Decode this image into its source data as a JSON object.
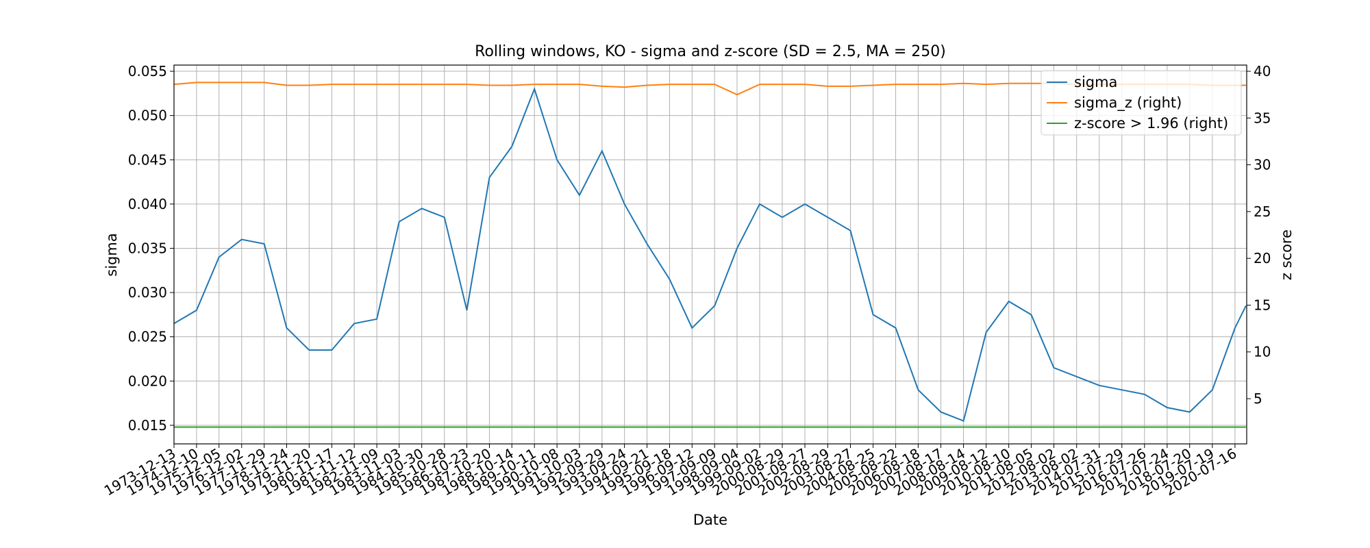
{
  "chart_data": {
    "type": "line",
    "title": "Rolling windows, KO - sigma and z-score (SD = 2.5, MA = 250)",
    "x_label": "Date",
    "y_label": "sigma",
    "y2_label": "z score",
    "x": [
      "1973-12-13",
      "1974-12-10",
      "1975-12-05",
      "1976-12-02",
      "1977-11-29",
      "1978-11-24",
      "1979-11-20",
      "1980-11-17",
      "1981-11-12",
      "1982-11-09",
      "1983-11-03",
      "1984-10-30",
      "1985-10-28",
      "1986-10-23",
      "1987-10-20",
      "1988-10-14",
      "1989-10-11",
      "1990-10-08",
      "1991-10-03",
      "1992-09-29",
      "1993-09-24",
      "1994-09-21",
      "1995-09-18",
      "1996-09-12",
      "1997-09-09",
      "1998-09-04",
      "1999-09-02",
      "2000-08-29",
      "2001-08-27",
      "2002-08-29",
      "2003-08-27",
      "2004-08-25",
      "2005-08-22",
      "2006-08-18",
      "2007-08-17",
      "2008-08-14",
      "2009-08-12",
      "2010-08-10",
      "2011-08-05",
      "2012-08-02",
      "2013-08-02",
      "2014-07-31",
      "2015-07-29",
      "2016-07-26",
      "2017-07-24",
      "2018-07-20",
      "2019-07-19",
      "2020-07-16",
      "2021-01-08"
    ],
    "xticks": [
      "1973-12-13",
      "1974-12-10",
      "1975-12-05",
      "1976-12-02",
      "1977-11-29",
      "1978-11-24",
      "1979-11-20",
      "1980-11-17",
      "1981-11-12",
      "1982-11-09",
      "1983-11-03",
      "1984-10-30",
      "1985-10-28",
      "1986-10-23",
      "1987-10-20",
      "1988-10-14",
      "1989-10-11",
      "1990-10-08",
      "1991-10-03",
      "1992-09-29",
      "1993-09-24",
      "1994-09-21",
      "1995-09-18",
      "1996-09-12",
      "1997-09-09",
      "1998-09-04",
      "1999-09-02",
      "2000-08-29",
      "2001-08-27",
      "2002-08-29",
      "2003-08-27",
      "2004-08-25",
      "2005-08-22",
      "2006-08-18",
      "2007-08-17",
      "2008-08-14",
      "2009-08-12",
      "2010-08-10",
      "2011-08-05",
      "2012-08-02",
      "2013-08-02",
      "2014-07-31",
      "2015-07-29",
      "2016-07-26",
      "2017-07-24",
      "2018-07-20",
      "2019-07-19",
      "2020-07-16"
    ],
    "xlim": [
      "1973-12-13",
      "2021-01-20"
    ],
    "ylim": [
      0.0129,
      0.0557
    ],
    "yticks": [
      0.015,
      {
        "value": 0.02,
        "label": "0.020"
      },
      0.025,
      {
        "value": 0.03,
        "label": "0.030"
      },
      0.035,
      {
        "value": 0.04,
        "label": "0.040"
      },
      0.045,
      {
        "value": 0.05,
        "label": "0.050"
      },
      0.055
    ],
    "y2lim": [
      0.17,
      40.66
    ],
    "y2ticks": [
      5,
      10,
      15,
      20,
      25,
      30,
      35,
      40
    ],
    "grid": true,
    "legend": "upper right",
    "series": [
      {
        "name": "sigma",
        "color": "#1f77b4",
        "axis": "y",
        "values": [
          0.0265,
          0.028,
          0.034,
          0.036,
          0.0355,
          0.026,
          0.0235,
          0.0235,
          0.0265,
          0.027,
          0.038,
          0.0395,
          0.0385,
          0.028,
          0.043,
          0.0465,
          0.053,
          0.045,
          0.041,
          0.046,
          0.04,
          0.0355,
          0.0315,
          0.026,
          0.0285,
          0.035,
          0.04,
          0.0385,
          0.04,
          0.0385,
          0.037,
          0.0275,
          0.026,
          0.019,
          0.0165,
          0.0155,
          0.0255,
          0.029,
          0.0275,
          0.0215,
          0.0205,
          0.0195,
          0.019,
          0.0185,
          0.017,
          0.0165,
          0.019,
          0.026,
          0.0285
        ]
      },
      {
        "name": "sigma_z (right)",
        "color": "#ff7f0e",
        "axis": "y2",
        "values": [
          38.6,
          38.8,
          38.8,
          38.8,
          38.8,
          38.5,
          38.5,
          38.6,
          38.6,
          38.6,
          38.6,
          38.6,
          38.6,
          38.6,
          38.5,
          38.5,
          38.6,
          38.6,
          38.6,
          38.4,
          38.3,
          38.5,
          38.6,
          38.6,
          38.6,
          37.5,
          38.6,
          38.6,
          38.6,
          38.4,
          38.4,
          38.5,
          38.6,
          38.6,
          38.6,
          38.7,
          38.6,
          38.7,
          38.7,
          38.7,
          38.6,
          38.6,
          38.6,
          38.6,
          38.6,
          38.6,
          38.5,
          38.5,
          38.5
        ]
      },
      {
        "name": "z-score > 1.96 (right)",
        "color": "#2ca02c",
        "axis": "y2",
        "values": [
          1.96,
          1.96,
          1.96,
          1.96,
          1.96,
          1.96,
          1.96,
          1.96,
          1.96,
          1.96,
          1.96,
          1.96,
          1.96,
          1.96,
          1.96,
          1.96,
          1.96,
          1.96,
          1.96,
          1.96,
          1.96,
          1.96,
          1.96,
          1.96,
          1.96,
          1.96,
          1.96,
          1.96,
          1.96,
          1.96,
          1.96,
          1.96,
          1.96,
          1.96,
          1.96,
          1.96,
          1.96,
          1.96,
          1.96,
          1.96,
          1.96,
          1.96,
          1.96,
          1.96,
          1.96,
          1.96,
          1.96,
          1.96,
          1.96
        ]
      }
    ]
  }
}
